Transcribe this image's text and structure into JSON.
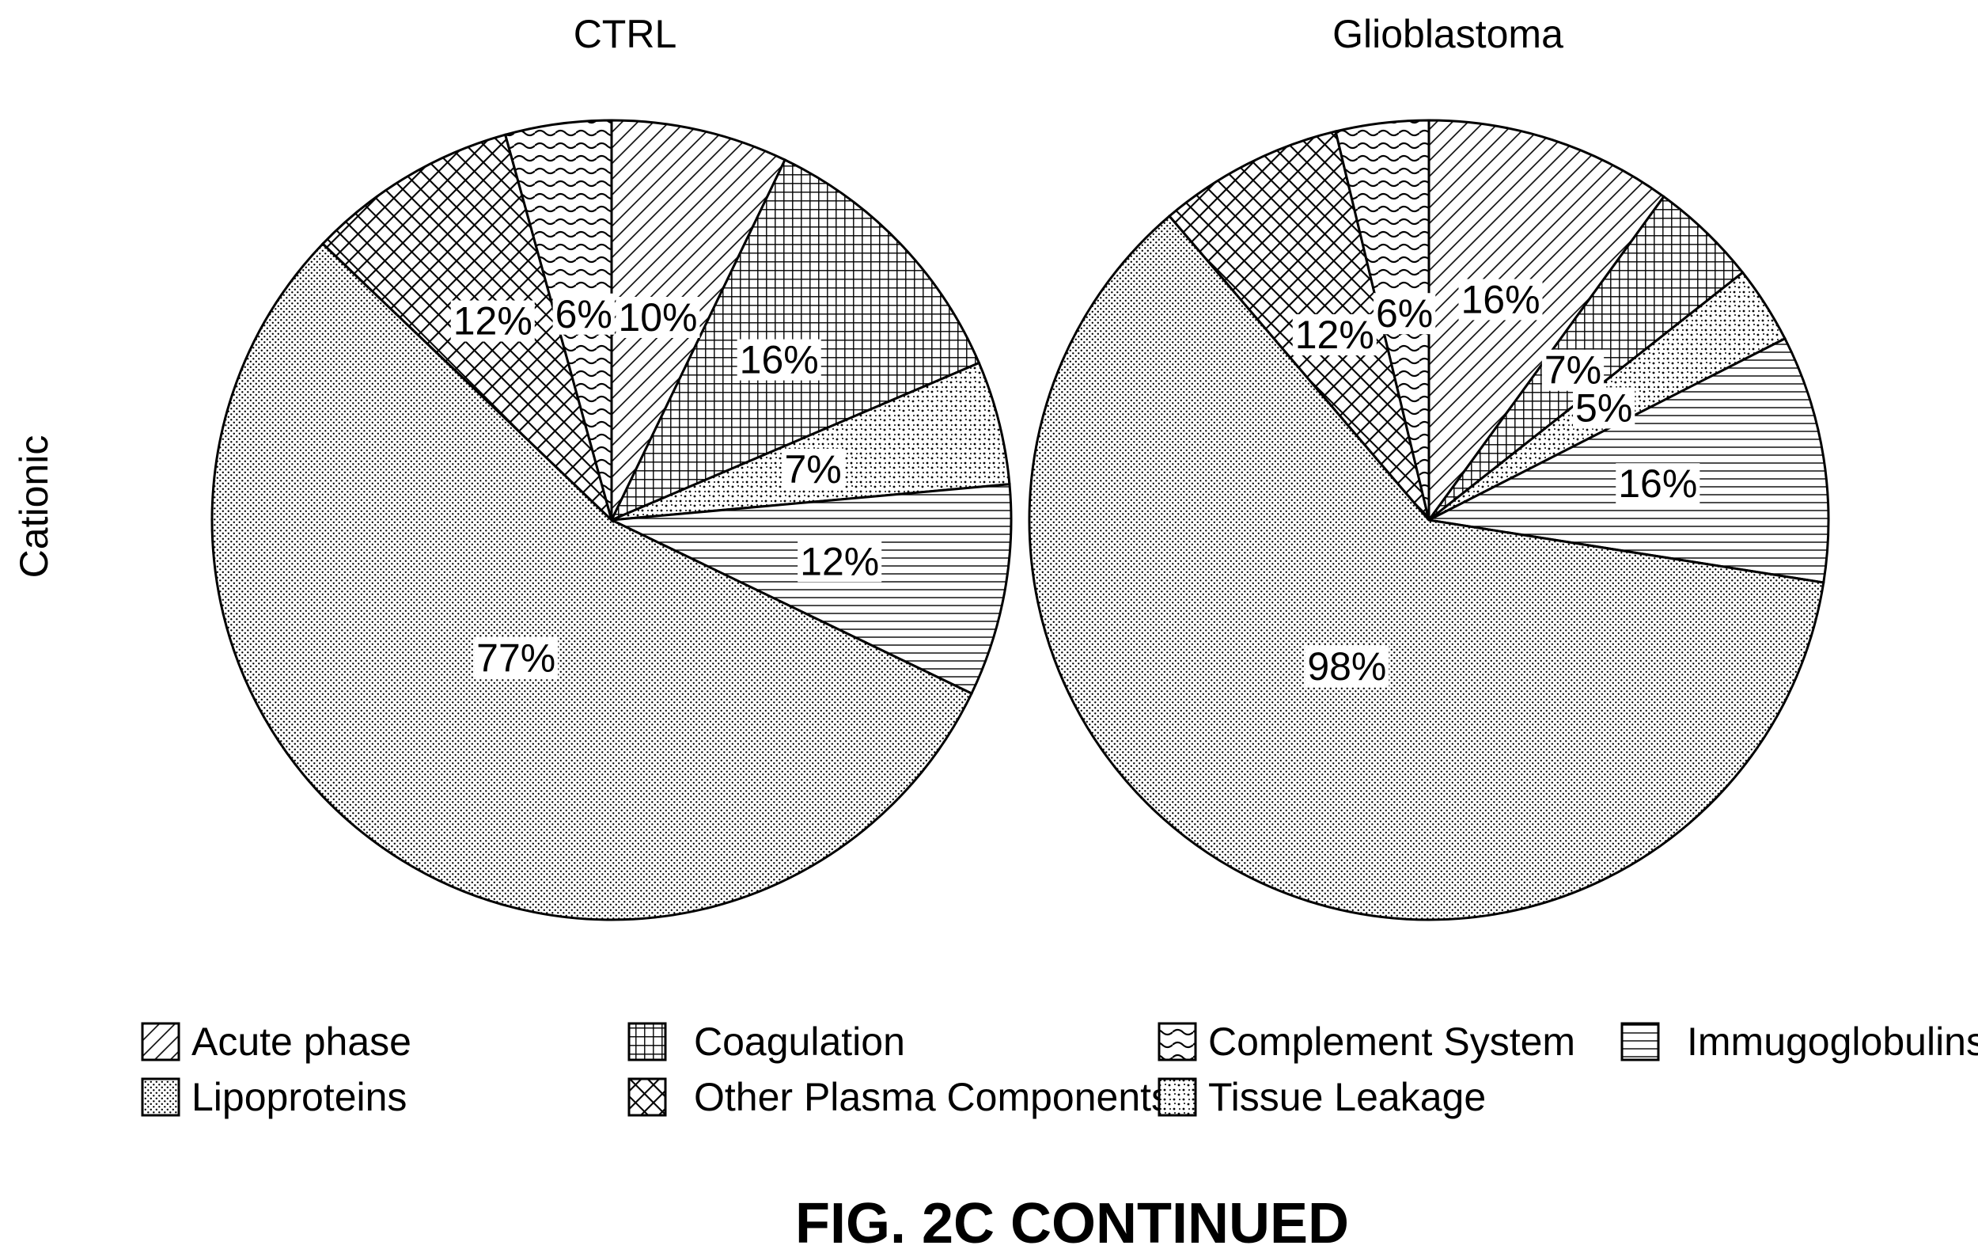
{
  "row_label": "Cationic",
  "figure_caption": "FIG. 2C CONTINUED",
  "legend": [
    {
      "label": "Acute phase",
      "pattern": "diag"
    },
    {
      "label": "Coagulation",
      "pattern": "grid"
    },
    {
      "label": "Complement System",
      "pattern": "wave"
    },
    {
      "label": "Immugoglobulins",
      "pattern": "hlines"
    },
    {
      "label": "Lipoproteins",
      "pattern": "fine-dots"
    },
    {
      "label": "Other Plasma Components",
      "pattern": "crosshatch"
    },
    {
      "label": "Tissue Leakage",
      "pattern": "sparse-dots"
    }
  ],
  "chart_data": [
    {
      "type": "pie",
      "title": "CTRL",
      "slices": [
        {
          "category": "Acute phase",
          "value": 10,
          "label": "10%"
        },
        {
          "category": "Coagulation",
          "value": 16,
          "label": "16%"
        },
        {
          "category": "Tissue Leakage",
          "value": 7,
          "label": "7%"
        },
        {
          "category": "Immugoglobulins",
          "value": 12,
          "label": "12%"
        },
        {
          "category": "Lipoproteins",
          "value": 77,
          "label": "77%"
        },
        {
          "category": "Other Plasma Components",
          "value": 12,
          "label": "12%"
        },
        {
          "category": "Complement System",
          "value": 6,
          "label": "6%"
        }
      ]
    },
    {
      "type": "pie",
      "title": "Glioblastoma",
      "slices": [
        {
          "category": "Acute phase",
          "value": 16,
          "label": "16%"
        },
        {
          "category": "Coagulation",
          "value": 7,
          "label": "7%"
        },
        {
          "category": "Tissue Leakage",
          "value": 5,
          "label": "5%"
        },
        {
          "category": "Immugoglobulins",
          "value": 16,
          "label": "16%"
        },
        {
          "category": "Lipoproteins",
          "value": 98,
          "label": "98%"
        },
        {
          "category": "Other Plasma Components",
          "value": 12,
          "label": "12%"
        },
        {
          "category": "Complement System",
          "value": 6,
          "label": "6%"
        }
      ]
    }
  ]
}
